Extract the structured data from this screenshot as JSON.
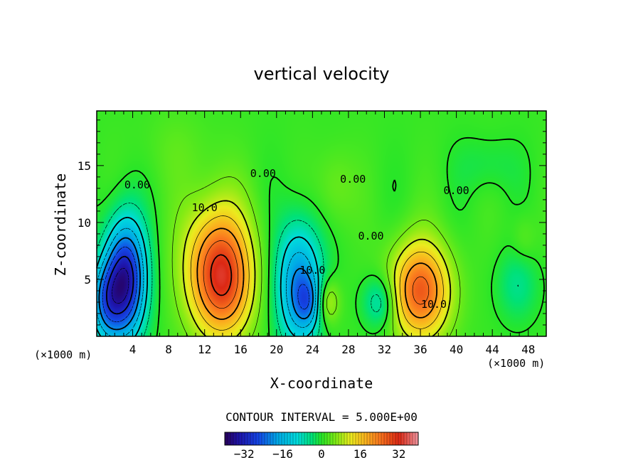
{
  "chart_data": {
    "type": "heatmap",
    "title": "vertical velocity",
    "xlabel": "X-coordinate",
    "ylabel": "Z-coordinate",
    "x_unit": "(×1000 m)",
    "z_unit": "(×1000 m)",
    "xlim": [
      0,
      50
    ],
    "ylim": [
      0,
      19.8
    ],
    "x_ticks": [
      4,
      8,
      12,
      16,
      20,
      24,
      28,
      32,
      36,
      40,
      44,
      48
    ],
    "y_ticks": [
      5,
      10,
      15
    ],
    "contour_interval_text": "CONTOUR INTERVAL = 5.000E+00",
    "contour_interval": 5.0,
    "colorbar": {
      "vmin": -40,
      "vmax": 40,
      "tick_values": [
        -32,
        -16,
        0,
        16,
        32
      ],
      "tick_labels": [
        "−32",
        "−16",
        "0",
        "16",
        "32"
      ]
    },
    "contour_labels": [
      {
        "text": "0.00",
        "x": 4.5,
        "z": 13.0
      },
      {
        "text": "10.0",
        "x": 12.0,
        "z": 11.0
      },
      {
        "text": "0.00",
        "x": 18.5,
        "z": 14.0
      },
      {
        "text": "10.0",
        "x": 24.0,
        "z": 5.5
      },
      {
        "text": "0.00",
        "x": 28.5,
        "z": 13.5
      },
      {
        "text": "0.00",
        "x": 30.5,
        "z": 8.5
      },
      {
        "text": "0.00",
        "x": 40.0,
        "z": 12.5
      },
      {
        "text": "10.0",
        "x": 37.5,
        "z": 2.5
      }
    ],
    "field_features": [
      {
        "kind": "min",
        "x": 3.2,
        "z": 5.0,
        "value": -35
      },
      {
        "kind": "max",
        "x": 13.5,
        "z": 6.0,
        "value": 26
      },
      {
        "kind": "min",
        "x": 22.5,
        "z": 4.5,
        "value": -22
      },
      {
        "kind": "max",
        "x": 25.7,
        "z": 3.0,
        "value": 10
      },
      {
        "kind": "min",
        "x": 31.5,
        "z": 3.0,
        "value": -10
      },
      {
        "kind": "max",
        "x": 36.0,
        "z": 4.0,
        "value": 26
      }
    ]
  }
}
